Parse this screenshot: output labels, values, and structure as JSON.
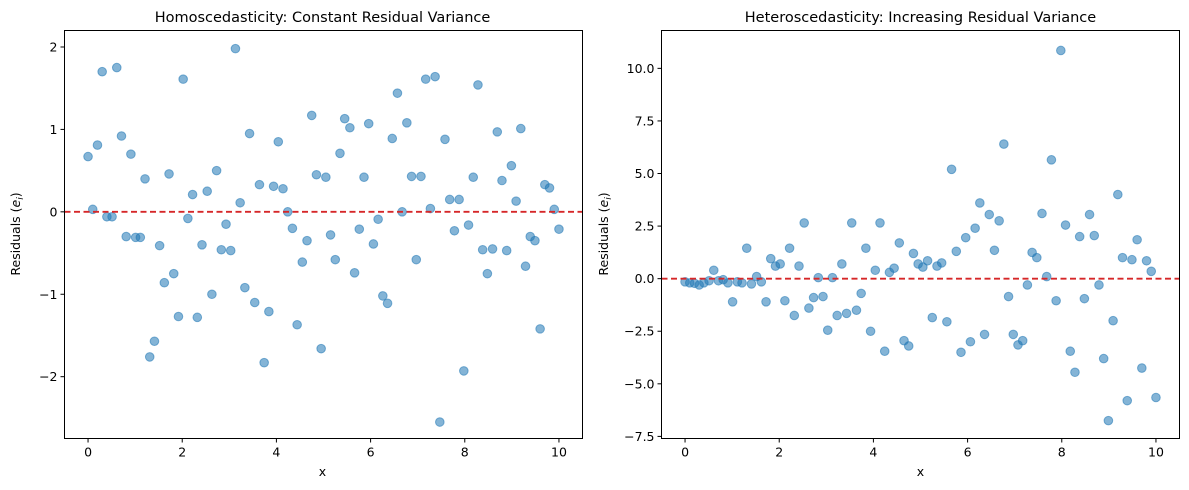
{
  "chart_data": [
    {
      "type": "scatter",
      "title": "Homoscedasticity: Constant Residual Variance",
      "xlabel": "x",
      "ylabel_main": "Residuals (",
      "ylabel_sym": "e",
      "ylabel_sub": "i",
      "ylabel_end": ")",
      "xlim": [
        -0.5,
        10.5
      ],
      "ylim": [
        -2.75,
        2.2
      ],
      "xticks": [
        0,
        2,
        4,
        6,
        8,
        10
      ],
      "xtick_labels": [
        "0",
        "2",
        "4",
        "6",
        "8",
        "10"
      ],
      "yticks": [
        -2,
        -1,
        0,
        1,
        2
      ],
      "ytick_labels": [
        "−2",
        "−1",
        "0",
        "1",
        "2"
      ],
      "reference_line": {
        "y": 0,
        "color": "#d62728",
        "style": "dashed"
      },
      "point_color": "#1f77b4",
      "point_alpha": 0.55,
      "grid": false,
      "x": [
        0.0,
        0.1,
        0.2,
        0.3,
        0.4,
        0.51,
        0.61,
        0.71,
        0.81,
        0.91,
        1.01,
        1.11,
        1.21,
        1.31,
        1.41,
        1.52,
        1.62,
        1.72,
        1.82,
        1.92,
        2.02,
        2.12,
        2.22,
        2.32,
        2.42,
        2.53,
        2.63,
        2.73,
        2.83,
        2.93,
        3.03,
        3.13,
        3.23,
        3.33,
        3.43,
        3.54,
        3.64,
        3.74,
        3.84,
        3.94,
        4.04,
        4.14,
        4.24,
        4.34,
        4.44,
        4.55,
        4.65,
        4.75,
        4.85,
        4.95,
        5.05,
        5.15,
        5.25,
        5.35,
        5.45,
        5.56,
        5.66,
        5.76,
        5.86,
        5.96,
        6.06,
        6.16,
        6.26,
        6.36,
        6.46,
        6.57,
        6.67,
        6.77,
        6.87,
        6.97,
        7.07,
        7.17,
        7.27,
        7.37,
        7.47,
        7.58,
        7.68,
        7.78,
        7.88,
        7.98,
        8.08,
        8.18,
        8.28,
        8.38,
        8.48,
        8.59,
        8.69,
        8.79,
        8.89,
        8.99,
        9.09,
        9.19,
        9.29,
        9.39,
        9.49,
        9.6,
        9.7,
        9.8,
        9.9,
        10.0
      ],
      "y": [
        0.67,
        0.03,
        0.81,
        1.7,
        -0.06,
        -0.06,
        1.75,
        0.92,
        -0.3,
        0.7,
        -0.31,
        -0.31,
        0.4,
        -1.76,
        -1.57,
        -0.41,
        -0.86,
        0.46,
        -0.75,
        -1.27,
        1.61,
        -0.08,
        0.21,
        -1.28,
        -0.4,
        0.25,
        -1.0,
        0.5,
        -0.46,
        -0.15,
        -0.47,
        1.98,
        0.11,
        -0.92,
        0.95,
        -1.1,
        0.33,
        -1.83,
        -1.21,
        0.31,
        0.85,
        0.28,
        0.0,
        -0.2,
        -1.37,
        -0.61,
        -0.35,
        1.17,
        0.45,
        -1.66,
        0.42,
        -0.28,
        -0.58,
        0.71,
        1.13,
        1.02,
        -0.74,
        -0.21,
        0.42,
        1.07,
        -0.39,
        -0.09,
        -1.02,
        -1.11,
        0.89,
        1.44,
        0.0,
        1.08,
        0.43,
        -0.58,
        0.43,
        1.61,
        0.04,
        1.64,
        -2.55,
        0.88,
        0.15,
        -0.23,
        0.15,
        -1.93,
        -0.16,
        0.42,
        1.54,
        -0.46,
        -0.75,
        -0.45,
        0.97,
        0.38,
        -0.47,
        0.56,
        0.13,
        1.01,
        -0.66,
        -0.3,
        -0.35,
        -1.42,
        0.33,
        0.29,
        0.03,
        -0.21
      ]
    },
    {
      "type": "scatter",
      "title": "Heteroscedasticity: Increasing Residual Variance",
      "xlabel": "x",
      "ylabel_main": "Residuals (",
      "ylabel_sym": "e",
      "ylabel_sub": "i",
      "ylabel_end": ")",
      "xlim": [
        -0.5,
        10.5
      ],
      "ylim": [
        -7.6,
        11.8
      ],
      "xticks": [
        0,
        2,
        4,
        6,
        8,
        10
      ],
      "xtick_labels": [
        "0",
        "2",
        "4",
        "6",
        "8",
        "10"
      ],
      "yticks": [
        -7.5,
        -5.0,
        -2.5,
        0.0,
        2.5,
        5.0,
        7.5,
        10.0
      ],
      "ytick_labels": [
        "−7.5",
        "−5.0",
        "−2.5",
        "0.0",
        "2.5",
        "5.0",
        "7.5",
        "10.0"
      ],
      "reference_line": {
        "y": 0,
        "color": "#d62728",
        "style": "dashed"
      },
      "point_color": "#1f77b4",
      "point_alpha": 0.55,
      "grid": false,
      "x": [
        0.0,
        0.1,
        0.2,
        0.3,
        0.4,
        0.51,
        0.61,
        0.71,
        0.81,
        0.91,
        1.01,
        1.11,
        1.21,
        1.31,
        1.41,
        1.52,
        1.62,
        1.72,
        1.82,
        1.92,
        2.02,
        2.12,
        2.22,
        2.32,
        2.42,
        2.53,
        2.63,
        2.73,
        2.83,
        2.93,
        3.03,
        3.13,
        3.23,
        3.33,
        3.43,
        3.54,
        3.64,
        3.74,
        3.84,
        3.94,
        4.04,
        4.14,
        4.24,
        4.34,
        4.44,
        4.55,
        4.65,
        4.75,
        4.85,
        4.95,
        5.05,
        5.15,
        5.25,
        5.35,
        5.45,
        5.56,
        5.66,
        5.76,
        5.86,
        5.96,
        6.06,
        6.16,
        6.26,
        6.36,
        6.46,
        6.57,
        6.67,
        6.77,
        6.87,
        6.97,
        7.07,
        7.17,
        7.27,
        7.37,
        7.47,
        7.58,
        7.68,
        7.78,
        7.88,
        7.98,
        8.08,
        8.18,
        8.28,
        8.38,
        8.48,
        8.59,
        8.69,
        8.79,
        8.89,
        8.99,
        9.09,
        9.19,
        9.29,
        9.39,
        9.49,
        9.6,
        9.7,
        9.8,
        9.9,
        10.0
      ],
      "y": [
        -0.15,
        -0.2,
        -0.22,
        -0.3,
        -0.2,
        -0.1,
        0.4,
        -0.1,
        -0.05,
        -0.2,
        -1.1,
        -0.15,
        -0.2,
        1.45,
        -0.25,
        0.1,
        -0.15,
        -1.1,
        0.95,
        0.6,
        0.7,
        -1.05,
        1.45,
        -1.75,
        0.6,
        2.65,
        -1.4,
        -0.9,
        0.05,
        -0.85,
        -2.45,
        0.05,
        -1.75,
        0.7,
        -1.65,
        2.65,
        -1.5,
        -0.7,
        1.45,
        -2.5,
        0.4,
        2.65,
        -3.45,
        0.3,
        0.5,
        1.7,
        -2.95,
        -3.2,
        1.2,
        0.7,
        0.55,
        0.85,
        -1.85,
        0.6,
        0.75,
        -2.05,
        5.2,
        1.3,
        -3.5,
        1.95,
        -3.0,
        2.4,
        3.6,
        -2.65,
        3.05,
        1.35,
        2.75,
        6.4,
        -0.85,
        -2.65,
        -3.15,
        -2.95,
        -0.3,
        1.25,
        1.0,
        3.1,
        0.1,
        5.65,
        -1.05,
        10.85,
        2.55,
        -3.45,
        -4.45,
        2.0,
        -0.95,
        3.05,
        2.05,
        -0.3,
        -3.8,
        -6.75,
        -2.0,
        4.0,
        1.0,
        -5.8,
        0.9,
        1.85,
        -4.25,
        0.85,
        0.35,
        -5.65
      ]
    }
  ]
}
